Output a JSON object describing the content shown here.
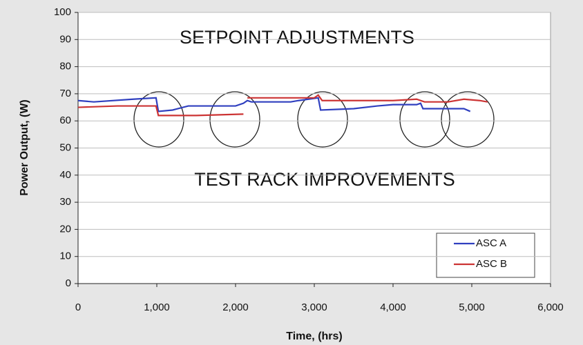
{
  "chart_data": {
    "type": "line",
    "xlabel": "Time, (hrs)",
    "ylabel": "Power Output, (W)",
    "annotations": [
      "SETPOINT ADJUSTMENTS",
      "TEST RACK IMPROVEMENTS"
    ],
    "xlim": [
      0,
      6000
    ],
    "xticks": [
      0,
      {
        "value": 1000,
        "label": "1,000"
      },
      {
        "value": 2000,
        "label": "2,000"
      },
      {
        "value": 3000,
        "label": "3,000"
      },
      {
        "value": 4000,
        "label": "4,000"
      },
      {
        "value": 5000,
        "label": "5,000"
      },
      {
        "value": 6000,
        "label": "6,000"
      }
    ],
    "ylim": [
      0,
      100
    ],
    "yticks": [
      0,
      10,
      20,
      30,
      40,
      50,
      60,
      70,
      80,
      90,
      100
    ],
    "grid": true,
    "legend": "lower right",
    "series": [
      {
        "name": "ASC A",
        "color": "#2f3fbf",
        "x": [
          0,
          200,
          700,
          990,
          1020,
          1200,
          1400,
          2000,
          2100,
          2150,
          2200,
          2700,
          2800,
          3050,
          3080,
          3500,
          3800,
          4000,
          4300,
          4350,
          4380,
          4900,
          4980
        ],
        "values": [
          67.5,
          67,
          68,
          68.5,
          63.5,
          64,
          65.5,
          65.5,
          66.5,
          67.5,
          67,
          67,
          67.5,
          68.5,
          64,
          64.5,
          65.5,
          66,
          66,
          66.5,
          64.5,
          64.5,
          63.5
        ]
      },
      {
        "name": "ASC B",
        "color": "#cc3333",
        "x": [
          0,
          500,
          990,
          1020,
          1500,
          2100,
          2130,
          2150,
          3000,
          3050,
          3100,
          4000,
          4300,
          4400,
          4700,
          4900,
          5100,
          5200
        ],
        "values": [
          65,
          65.5,
          65.5,
          62,
          62,
          62.5,
          null,
          68.5,
          68.5,
          69.5,
          67.5,
          67.5,
          68,
          67,
          67,
          68,
          67.5,
          67
        ]
      }
    ]
  }
}
